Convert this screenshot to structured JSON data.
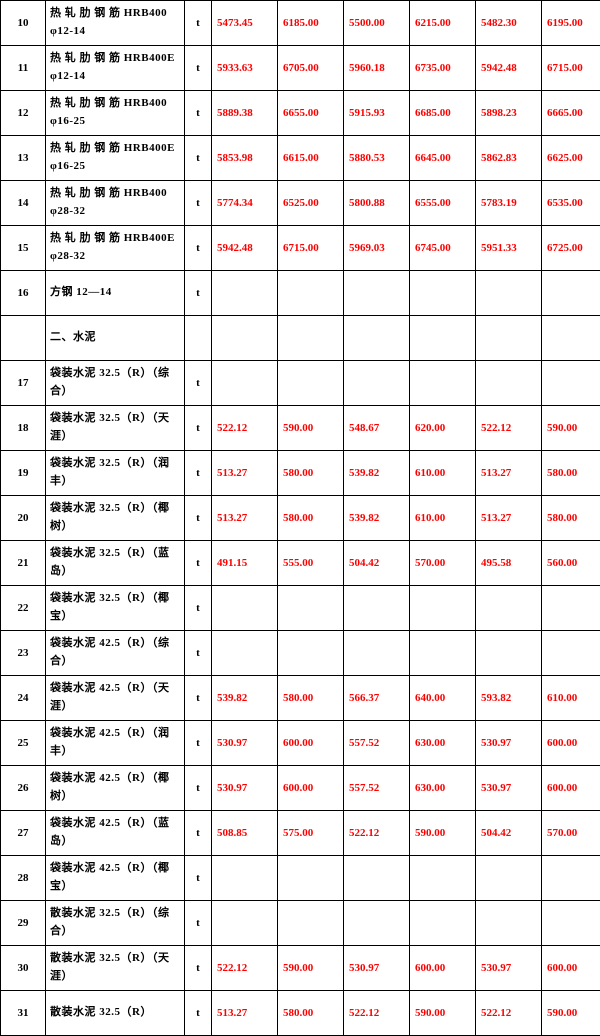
{
  "table": {
    "columns": [
      "id",
      "name",
      "unit",
      "v1",
      "v2",
      "v3",
      "v4",
      "v5",
      "v6"
    ],
    "col_classes": [
      "col-id",
      "col-name",
      "col-unit",
      "col-val",
      "col-val",
      "col-val",
      "col-val",
      "col-val",
      "col-val"
    ],
    "value_color": "#ff0000",
    "border_color": "#000000",
    "rows": [
      {
        "id": "10",
        "name": "热 轧 肋 钢 筋 HRB400 φ12-14",
        "unit": "t",
        "v1": "5473.45",
        "v2": "6185.00",
        "v3": "5500.00",
        "v4": "6215.00",
        "v5": "5482.30",
        "v6": "6195.00"
      },
      {
        "id": "11",
        "name": "热 轧 肋 钢 筋 HRB400E φ12-14",
        "unit": "t",
        "v1": "5933.63",
        "v2": "6705.00",
        "v3": "5960.18",
        "v4": "6735.00",
        "v5": "5942.48",
        "v6": "6715.00"
      },
      {
        "id": "12",
        "name": "热 轧 肋 钢 筋 HRB400 φ16-25",
        "unit": "t",
        "v1": "5889.38",
        "v2": "6655.00",
        "v3": "5915.93",
        "v4": "6685.00",
        "v5": "5898.23",
        "v6": "6665.00"
      },
      {
        "id": "13",
        "name": "热 轧 肋 钢 筋 HRB400E φ16-25",
        "unit": "t",
        "v1": "5853.98",
        "v2": "6615.00",
        "v3": "5880.53",
        "v4": "6645.00",
        "v5": "5862.83",
        "v6": "6625.00"
      },
      {
        "id": "14",
        "name": "热 轧 肋 钢 筋 HRB400 φ28-32",
        "unit": "t",
        "v1": "5774.34",
        "v2": "6525.00",
        "v3": "5800.88",
        "v4": "6555.00",
        "v5": "5783.19",
        "v6": "6535.00"
      },
      {
        "id": "15",
        "name": "热 轧 肋 钢 筋 HRB400E φ28-32",
        "unit": "t",
        "v1": "5942.48",
        "v2": "6715.00",
        "v3": "5969.03",
        "v4": "6745.00",
        "v5": "5951.33",
        "v6": "6725.00"
      },
      {
        "id": "16",
        "name": "方钢 12—14",
        "unit": "t",
        "v1": "",
        "v2": "",
        "v3": "",
        "v4": "",
        "v5": "",
        "v6": ""
      },
      {
        "id": "",
        "name": "二、水泥",
        "unit": "",
        "v1": "",
        "v2": "",
        "v3": "",
        "v4": "",
        "v5": "",
        "v6": ""
      },
      {
        "id": "17",
        "name": "袋装水泥 32.5（R）（综合）",
        "unit": "t",
        "v1": "",
        "v2": "",
        "v3": "",
        "v4": "",
        "v5": "",
        "v6": ""
      },
      {
        "id": "18",
        "name": "袋装水泥 32.5（R）（天涯）",
        "unit": "t",
        "v1": "522.12",
        "v2": "590.00",
        "v3": "548.67",
        "v4": "620.00",
        "v5": "522.12",
        "v6": "590.00"
      },
      {
        "id": "19",
        "name": "袋装水泥 32.5（R）（润丰）",
        "unit": "t",
        "v1": "513.27",
        "v2": "580.00",
        "v3": "539.82",
        "v4": "610.00",
        "v5": "513.27",
        "v6": "580.00"
      },
      {
        "id": "20",
        "name": "袋装水泥 32.5（R）（椰树）",
        "unit": "t",
        "v1": "513.27",
        "v2": "580.00",
        "v3": "539.82",
        "v4": "610.00",
        "v5": "513.27",
        "v6": "580.00"
      },
      {
        "id": "21",
        "name": "袋装水泥 32.5（R）（蓝岛）",
        "unit": "t",
        "v1": "491.15",
        "v2": "555.00",
        "v3": "504.42",
        "v4": "570.00",
        "v5": "495.58",
        "v6": "560.00"
      },
      {
        "id": "22",
        "name": "袋装水泥 32.5（R）（椰宝）",
        "unit": "t",
        "v1": "",
        "v2": "",
        "v3": "",
        "v4": "",
        "v5": "",
        "v6": ""
      },
      {
        "id": "23",
        "name": "袋装水泥 42.5（R）（综合）",
        "unit": "t",
        "v1": "",
        "v2": "",
        "v3": "",
        "v4": "",
        "v5": "",
        "v6": ""
      },
      {
        "id": "24",
        "name": "袋装水泥 42.5（R）（天涯）",
        "unit": "t",
        "v1": "539.82",
        "v2": "580.00",
        "v3": "566.37",
        "v4": "640.00",
        "v5": "593.82",
        "v6": "610.00"
      },
      {
        "id": "25",
        "name": "袋装水泥 42.5（R）（润丰）",
        "unit": "t",
        "v1": "530.97",
        "v2": "600.00",
        "v3": "557.52",
        "v4": "630.00",
        "v5": "530.97",
        "v6": "600.00"
      },
      {
        "id": "26",
        "name": "袋装水泥 42.5（R）（椰树）",
        "unit": "t",
        "v1": "530.97",
        "v2": "600.00",
        "v3": "557.52",
        "v4": "630.00",
        "v5": "530.97",
        "v6": "600.00"
      },
      {
        "id": "27",
        "name": "袋装水泥 42.5（R）（蓝岛）",
        "unit": "t",
        "v1": "508.85",
        "v2": "575.00",
        "v3": "522.12",
        "v4": "590.00",
        "v5": "504.42",
        "v6": "570.00"
      },
      {
        "id": "28",
        "name": "袋装水泥 42.5（R）（椰宝）",
        "unit": "t",
        "v1": "",
        "v2": "",
        "v3": "",
        "v4": "",
        "v5": "",
        "v6": ""
      },
      {
        "id": "29",
        "name": "散装水泥 32.5（R）（综合）",
        "unit": "t",
        "v1": "",
        "v2": "",
        "v3": "",
        "v4": "",
        "v5": "",
        "v6": ""
      },
      {
        "id": "30",
        "name": "散装水泥 32.5（R）（天涯）",
        "unit": "t",
        "v1": "522.12",
        "v2": "590.00",
        "v3": "530.97",
        "v4": "600.00",
        "v5": "530.97",
        "v6": "600.00"
      },
      {
        "id": "31",
        "name": "散装水泥 32.5（R）",
        "unit": "t",
        "v1": "513.27",
        "v2": "580.00",
        "v3": "522.12",
        "v4": "590.00",
        "v5": "522.12",
        "v6": "590.00"
      }
    ]
  }
}
